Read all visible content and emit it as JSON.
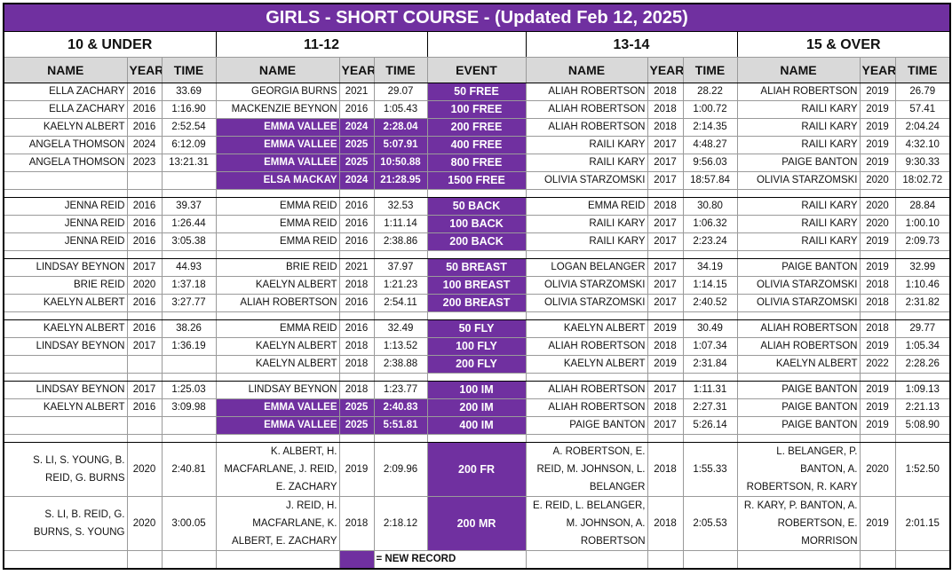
{
  "title": "GIRLS - SHORT COURSE - (Updated Feb 12, 2025)",
  "colors": {
    "record": "#7030a0",
    "header_bg": "#d9d9d9"
  },
  "groups": [
    "10 & UNDER",
    "11-12",
    "13-14",
    "15 & OVER"
  ],
  "event_header": "EVENT",
  "col_headers": {
    "name": "NAME",
    "year": "YEAR",
    "time": "TIME"
  },
  "sections": [
    [
      {
        "event": "50 FREE",
        "g": [
          [
            "ELLA ZACHARY",
            "2016",
            "33.69"
          ],
          [
            "GEORGIA BURNS",
            "2021",
            "29.07"
          ],
          [
            "ALIAH ROBERTSON",
            "2018",
            "28.22"
          ],
          [
            "ALIAH ROBERTSON",
            "2019",
            "26.79"
          ]
        ],
        "new": []
      },
      {
        "event": "100 FREE",
        "g": [
          [
            "ELLA ZACHARY",
            "2016",
            "1:16.90"
          ],
          [
            "MACKENZIE BEYNON",
            "2016",
            "1:05.43"
          ],
          [
            "ALIAH ROBERTSON",
            "2018",
            "1:00.72"
          ],
          [
            "RAILI KARY",
            "2019",
            "57.41"
          ]
        ],
        "new": []
      },
      {
        "event": "200 FREE",
        "g": [
          [
            "KAELYN ALBERT",
            "2016",
            "2:52.54"
          ],
          [
            "EMMA VALLEE",
            "2024",
            "2:28.04"
          ],
          [
            "ALIAH ROBERTSON",
            "2018",
            "2:14.35"
          ],
          [
            "RAILI KARY",
            "2019",
            "2:04.24"
          ]
        ],
        "new": [
          1
        ]
      },
      {
        "event": "400 FREE",
        "g": [
          [
            "ANGELA THOMSON",
            "2024",
            "6:12.09"
          ],
          [
            "EMMA VALLEE",
            "2025",
            "5:07.91"
          ],
          [
            "RAILI KARY",
            "2017",
            "4:48.27"
          ],
          [
            "RAILI KARY",
            "2019",
            "4:32.10"
          ]
        ],
        "new": [
          1
        ]
      },
      {
        "event": "800 FREE",
        "g": [
          [
            "ANGELA THOMSON",
            "2023",
            "13:21.31"
          ],
          [
            "EMMA VALLEE",
            "2025",
            "10:50.88"
          ],
          [
            "RAILI KARY",
            "2017",
            "9:56.03"
          ],
          [
            "PAIGE BANTON",
            "2019",
            "9:30.33"
          ]
        ],
        "new": [
          1
        ]
      },
      {
        "event": "1500 FREE",
        "g": [
          [
            "",
            "",
            ""
          ],
          [
            "ELSA MACKAY",
            "2024",
            "21:28.95"
          ],
          [
            "OLIVIA STARZOMSKI",
            "2017",
            "18:57.84"
          ],
          [
            "OLIVIA STARZOMSKI",
            "2020",
            "18:02.72"
          ]
        ],
        "new": [
          1
        ]
      }
    ],
    [
      {
        "event": "50 BACK",
        "g": [
          [
            "JENNA REID",
            "2016",
            "39.37"
          ],
          [
            "EMMA REID",
            "2016",
            "32.53"
          ],
          [
            "EMMA REID",
            "2018",
            "30.80"
          ],
          [
            "RAILI KARY",
            "2020",
            "28.84"
          ]
        ],
        "new": []
      },
      {
        "event": "100 BACK",
        "g": [
          [
            "JENNA REID",
            "2016",
            "1:26.44"
          ],
          [
            "EMMA REID",
            "2016",
            "1:11.14"
          ],
          [
            "RAILI KARY",
            "2017",
            "1:06.32"
          ],
          [
            "RAILI KARY",
            "2020",
            "1:00.10"
          ]
        ],
        "new": []
      },
      {
        "event": "200 BACK",
        "g": [
          [
            "JENNA REID",
            "2016",
            "3:05.38"
          ],
          [
            "EMMA REID",
            "2016",
            "2:38.86"
          ],
          [
            "RAILI KARY",
            "2017",
            "2:23.24"
          ],
          [
            "RAILI KARY",
            "2019",
            "2:09.73"
          ]
        ],
        "new": []
      }
    ],
    [
      {
        "event": "50 BREAST",
        "g": [
          [
            "LINDSAY BEYNON",
            "2017",
            "44.93"
          ],
          [
            "BRIE REID",
            "2021",
            "37.97"
          ],
          [
            "LOGAN BELANGER",
            "2017",
            "34.19"
          ],
          [
            "PAIGE BANTON",
            "2019",
            "32.99"
          ]
        ],
        "new": []
      },
      {
        "event": "100 BREAST",
        "g": [
          [
            "BRIE REID",
            "2020",
            "1:37.18"
          ],
          [
            "KAELYN ALBERT",
            "2018",
            "1:21.23"
          ],
          [
            "OLIVIA STARZOMSKI",
            "2017",
            "1:14.15"
          ],
          [
            "OLIVIA STARZOMSKI",
            "2018",
            "1:10.46"
          ]
        ],
        "new": []
      },
      {
        "event": "200 BREAST",
        "g": [
          [
            "KAELYN ALBERT",
            "2016",
            "3:27.77"
          ],
          [
            "ALIAH ROBERTSON",
            "2016",
            "2:54.11"
          ],
          [
            "OLIVIA STARZOMSKI",
            "2017",
            "2:40.52"
          ],
          [
            "OLIVIA STARZOMSKI",
            "2018",
            "2:31.82"
          ]
        ],
        "new": []
      }
    ],
    [
      {
        "event": "50 FLY",
        "g": [
          [
            "KAELYN ALBERT",
            "2016",
            "38.26"
          ],
          [
            "EMMA REID",
            "2016",
            "32.49"
          ],
          [
            "KAELYN ALBERT",
            "2019",
            "30.49"
          ],
          [
            "ALIAH ROBERTSON",
            "2018",
            "29.77"
          ]
        ],
        "new": []
      },
      {
        "event": "100 FLY",
        "g": [
          [
            "LINDSAY BEYNON",
            "2017",
            "1:36.19"
          ],
          [
            "KAELYN ALBERT",
            "2018",
            "1:13.52"
          ],
          [
            "ALIAH ROBERTSON",
            "2018",
            "1:07.34"
          ],
          [
            "ALIAH ROBERTSON",
            "2019",
            "1:05.34"
          ]
        ],
        "new": []
      },
      {
        "event": "200 FLY",
        "g": [
          [
            "",
            "",
            ""
          ],
          [
            "KAELYN ALBERT",
            "2018",
            "2:38.88"
          ],
          [
            "KAELYN ALBERT",
            "2019",
            "2:31.84"
          ],
          [
            "KAELYN ALBERT",
            "2022",
            "2:28.26"
          ]
        ],
        "new": []
      }
    ],
    [
      {
        "event": "100 IM",
        "g": [
          [
            "LINDSAY BEYNON",
            "2017",
            "1:25.03"
          ],
          [
            "LINDSAY BEYNON",
            "2018",
            "1:23.77"
          ],
          [
            "ALIAH ROBERTSON",
            "2017",
            "1:11.31"
          ],
          [
            "PAIGE BANTON",
            "2019",
            "1:09.13"
          ]
        ],
        "new": []
      },
      {
        "event": "200 IM",
        "g": [
          [
            "KAELYN ALBERT",
            "2016",
            "3:09.98"
          ],
          [
            "EMMA VALLEE",
            "2025",
            "2:40.83"
          ],
          [
            "ALIAH ROBERTSON",
            "2018",
            "2:27.31"
          ],
          [
            "PAIGE BANTON",
            "2019",
            "2:21.13"
          ]
        ],
        "new": [
          1
        ]
      },
      {
        "event": "400 IM",
        "g": [
          [
            "",
            "",
            ""
          ],
          [
            "EMMA VALLEE",
            "2025",
            "5:51.81"
          ],
          [
            "PAIGE BANTON",
            "2017",
            "5:26.14"
          ],
          [
            "PAIGE BANTON",
            "2019",
            "5:08.90"
          ]
        ],
        "new": [
          1
        ]
      }
    ]
  ],
  "relays": [
    {
      "event": "200 FR",
      "g": [
        [
          "S. LI, S. YOUNG, B. REID, G. BURNS",
          "2020",
          "2:40.81"
        ],
        [
          "K. ALBERT, H. MACFARLANE, J. REID, E. ZACHARY",
          "2019",
          "2:09.96"
        ],
        [
          "A. ROBERTSON, E. REID, M. JOHNSON, L. BELANGER",
          "2018",
          "1:55.33"
        ],
        [
          "L. BELANGER, P. BANTON, A. ROBERTSON, R. KARY",
          "2020",
          "1:52.50"
        ]
      ],
      "new": []
    },
    {
      "event": "200 MR",
      "g": [
        [
          "S. LI, B. REID, G. BURNS, S. YOUNG",
          "2020",
          "3:00.05"
        ],
        [
          "J. REID, H. MACFARLANE, K. ALBERT, E. ZACHARY",
          "2018",
          "2:18.12"
        ],
        [
          "E. REID, L. BELANGER, M. JOHNSON, A. ROBERTSON",
          "2018",
          "2:05.53"
        ],
        [
          "R. KARY, P. BANTON, A. ROBERTSON, E. MORRISON",
          "2019",
          "2:01.15"
        ]
      ],
      "new": []
    }
  ],
  "legend": {
    "label": "= NEW RECORD"
  }
}
